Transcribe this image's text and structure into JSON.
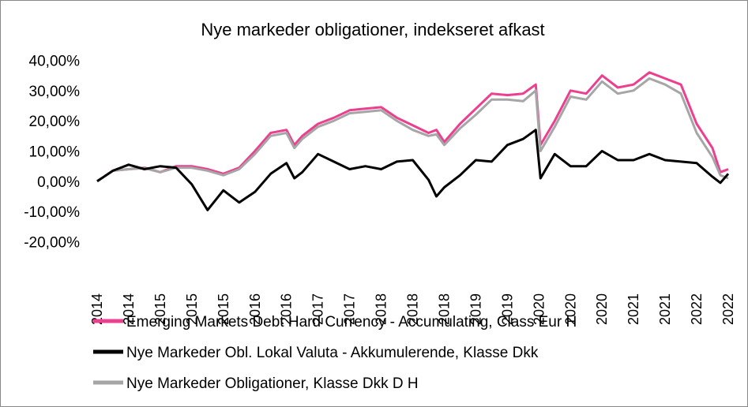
{
  "chart_data": {
    "type": "line",
    "title": "Nye markeder obligationer, indekseret afkast",
    "x": [
      0,
      0.5,
      1,
      1.5,
      2,
      2.5,
      3,
      3.5,
      4,
      4.5,
      5,
      5.5,
      6,
      6.25,
      6.5,
      7,
      7.5,
      8,
      8.5,
      9,
      9.5,
      10,
      10.5,
      10.75,
      11,
      11.5,
      12,
      12.5,
      13,
      13.5,
      13.9,
      14.05,
      14.5,
      15,
      15.5,
      16,
      16.5,
      17,
      17.5,
      18,
      18.5,
      19,
      19.5,
      19.75,
      20
    ],
    "xlim": [
      0,
      20
    ],
    "xticks": [
      {
        "value": 0,
        "label": "2014"
      },
      {
        "value": 1,
        "label": "2014"
      },
      {
        "value": 2,
        "label": "2015"
      },
      {
        "value": 3,
        "label": "2015"
      },
      {
        "value": 4,
        "label": "2015"
      },
      {
        "value": 5,
        "label": "2016"
      },
      {
        "value": 6,
        "label": "2016"
      },
      {
        "value": 7,
        "label": "2017"
      },
      {
        "value": 8,
        "label": "2017"
      },
      {
        "value": 9,
        "label": "2018"
      },
      {
        "value": 10,
        "label": "2018"
      },
      {
        "value": 11,
        "label": "2018"
      },
      {
        "value": 12,
        "label": "2019"
      },
      {
        "value": 13,
        "label": "2019"
      },
      {
        "value": 14,
        "label": "2020"
      },
      {
        "value": 15,
        "label": "2020"
      },
      {
        "value": 16,
        "label": "2020"
      },
      {
        "value": 17,
        "label": "2021"
      },
      {
        "value": 18,
        "label": "2021"
      },
      {
        "value": 19,
        "label": "2022"
      },
      {
        "value": 20,
        "label": "2022"
      }
    ],
    "ylim": [
      -20,
      40
    ],
    "yticks": [
      {
        "value": 40,
        "label": "40,00%"
      },
      {
        "value": 30,
        "label": "30,00%"
      },
      {
        "value": 20,
        "label": "20,00%"
      },
      {
        "value": 10,
        "label": "10,00%"
      },
      {
        "value": 0,
        "label": "0,00%"
      },
      {
        "value": -10,
        "label": "-10,00%"
      },
      {
        "value": -20,
        "label": "-20,00%"
      }
    ],
    "grid": false,
    "legend": "bottom",
    "series": [
      {
        "name": "Emerging Markets Debt Hard Currency - Accumulating, Class Eur H",
        "color": "#ec3f8f",
        "values": [
          0,
          3.5,
          4,
          4.5,
          3,
          5,
          5,
          4,
          2.5,
          4.5,
          10,
          16,
          17,
          12,
          15,
          19,
          21,
          23.5,
          24,
          24.5,
          21,
          18.5,
          16,
          17,
          13,
          19,
          24,
          29,
          28.5,
          29,
          32,
          12,
          20,
          30,
          29,
          35,
          31,
          32,
          36,
          34,
          32,
          19,
          11,
          3,
          4
        ]
      },
      {
        "name": "Nye Markeder Obl. Lokal Valuta - Akkumulerende, Klasse Dkk",
        "color": "#000000",
        "values": [
          0,
          3.5,
          5.5,
          4,
          5,
          4.5,
          -1,
          -9.5,
          -3,
          -7,
          -3.5,
          2.5,
          6,
          1,
          3,
          9,
          6.5,
          4,
          5,
          4,
          6.5,
          7,
          0.5,
          -5,
          -2,
          2,
          7,
          6.5,
          12,
          14,
          17,
          1,
          9,
          5,
          5,
          10,
          7,
          7,
          9,
          7,
          6.5,
          6,
          1.5,
          -0.5,
          2.5
        ]
      },
      {
        "name": "Nye Markeder Obligationer, Klasse Dkk D H",
        "color": "#a6a6a6",
        "values": [
          0,
          3.5,
          4,
          4.3,
          3,
          4.5,
          4.5,
          3.5,
          2,
          4,
          9,
          15,
          16,
          11,
          14,
          18,
          20,
          22.5,
          23,
          23.5,
          20,
          17,
          15,
          15.5,
          12,
          17.5,
          22,
          27,
          27,
          26.5,
          30,
          10,
          18,
          28,
          27,
          33,
          29,
          30,
          34,
          32,
          29,
          16,
          8,
          2,
          1
        ]
      }
    ]
  }
}
